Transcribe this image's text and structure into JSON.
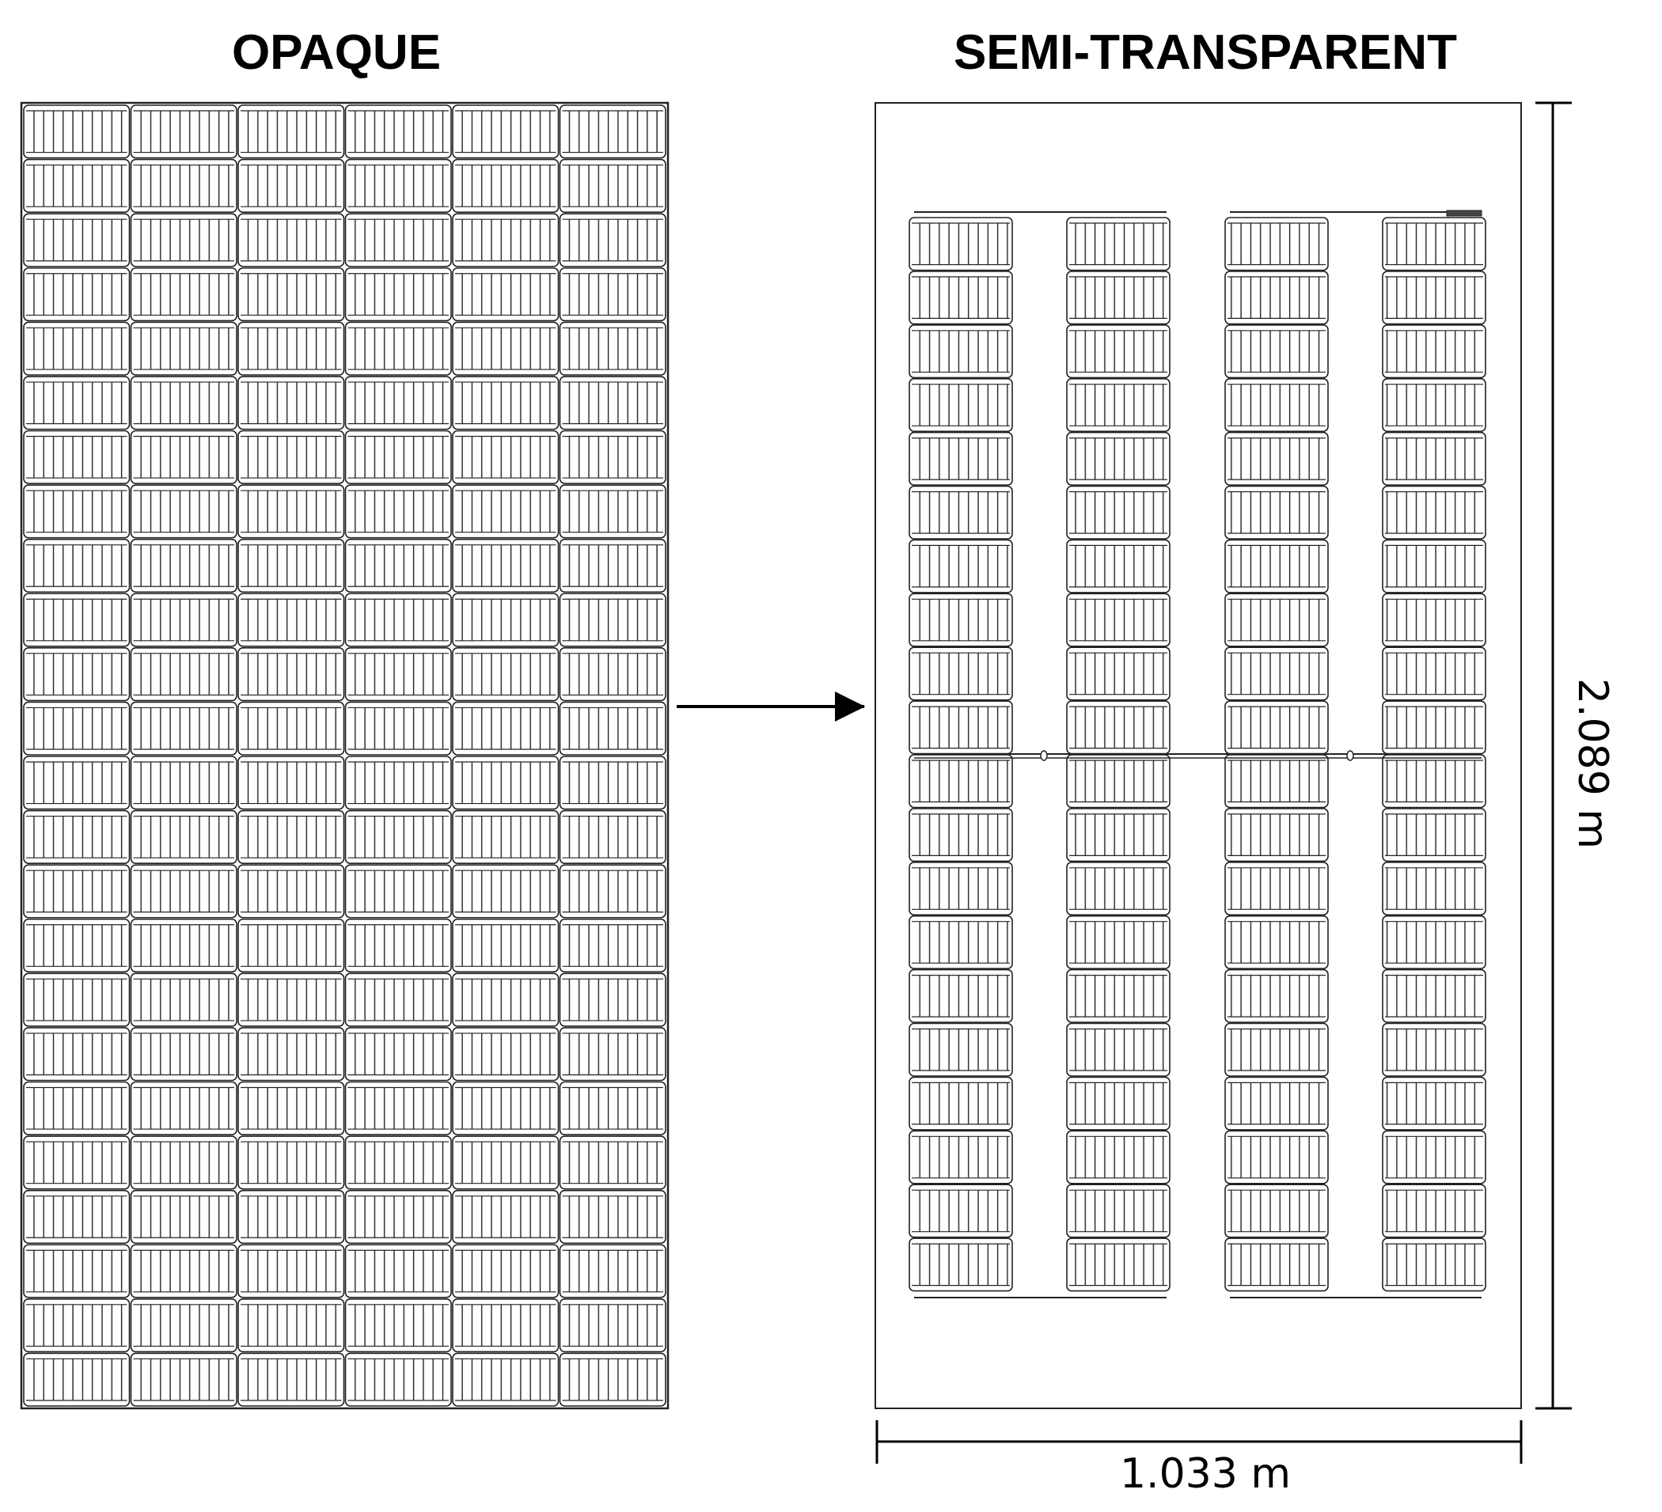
{
  "diagram": {
    "left_title": "OPAQUE",
    "right_title": "SEMI-TRANSPARENT",
    "width_label": "1.033 m",
    "height_label": "2.089 m",
    "opaque_panel": {
      "cell_columns": 6,
      "cell_rows": 24
    },
    "semi_transparent_panel": {
      "cell_strings": 4,
      "cells_per_string": 20
    }
  }
}
